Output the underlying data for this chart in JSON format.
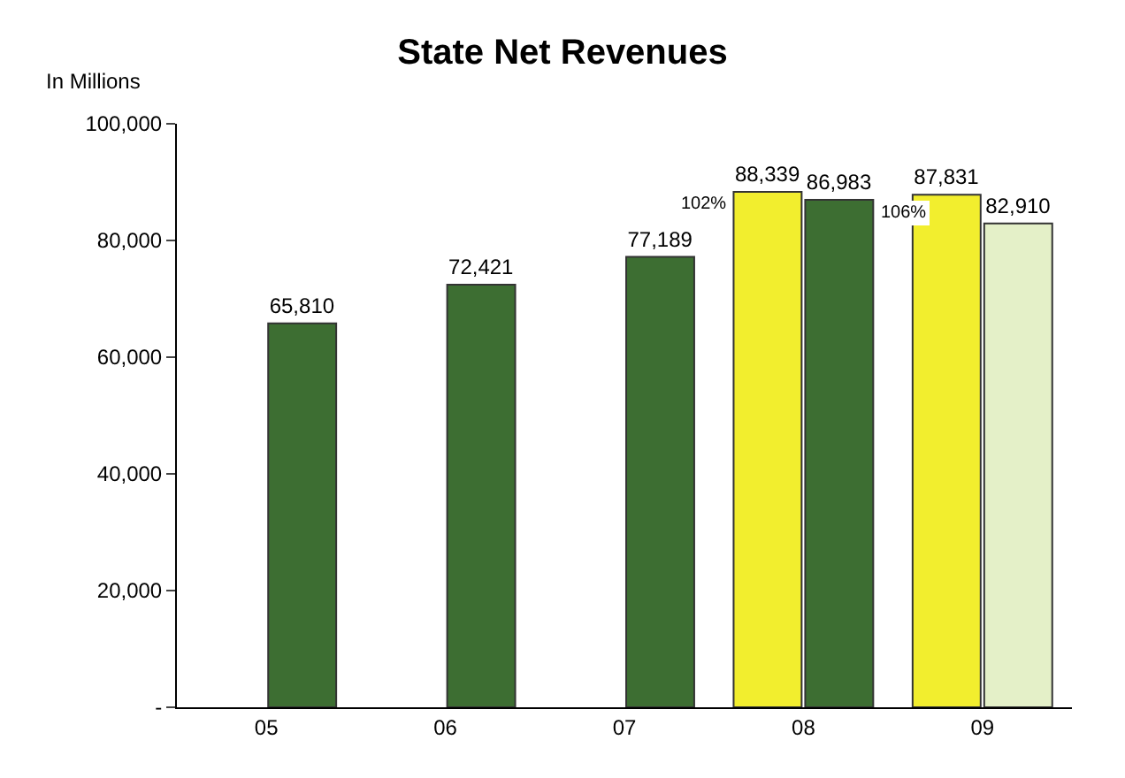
{
  "chart_data": {
    "type": "bar",
    "title": "State Net Revenues",
    "ylabel": "In Millions",
    "categories": [
      "05",
      "06",
      "07",
      "08",
      "09"
    ],
    "series": [
      {
        "color": "#f2ee2e",
        "values": [
          null,
          null,
          null,
          88339,
          87831
        ],
        "value_labels": [
          null,
          null,
          null,
          "88,339",
          "87,831"
        ]
      },
      {
        "color": "#3d6e32",
        "values": [
          65810,
          72421,
          77189,
          86983,
          null
        ],
        "value_labels": [
          "65,810",
          "72,421",
          "77,189",
          "86,983",
          null
        ]
      },
      {
        "color": "#e4f0c8",
        "values": [
          null,
          null,
          null,
          null,
          82910
        ],
        "value_labels": [
          null,
          null,
          null,
          null,
          "82,910"
        ]
      }
    ],
    "ylim": [
      0,
      100000
    ],
    "yticks": [
      {
        "value": 0,
        "label": "-"
      },
      {
        "value": 20000,
        "label": "20,000"
      },
      {
        "value": 40000,
        "label": "40,000"
      },
      {
        "value": 60000,
        "label": "60,000"
      },
      {
        "value": 80000,
        "label": "80,000"
      },
      {
        "value": 100000,
        "label": "100,000"
      }
    ],
    "legend": false,
    "annotations": [
      "102%",
      "106%"
    ]
  }
}
